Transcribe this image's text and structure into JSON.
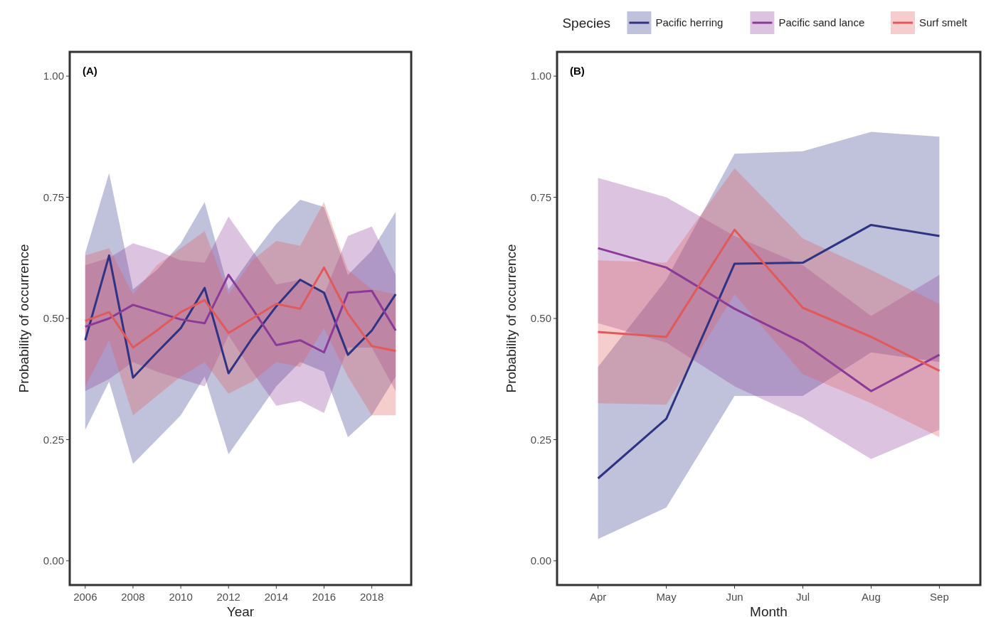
{
  "chart_data": [
    {
      "type": "line",
      "title": "(A)",
      "xlabel": "Year",
      "ylabel": "Probability of occurrence",
      "x": [
        2006,
        2007,
        2008,
        2009,
        2010,
        2011,
        2012,
        2013,
        2014,
        2015,
        2016,
        2017,
        2018,
        2019
      ],
      "xlim": [
        2005.35,
        2019.65
      ],
      "xticks": [
        2006,
        2008,
        2010,
        2012,
        2014,
        2016,
        2018
      ],
      "ylim": [
        -0.05,
        1.05
      ],
      "yticks": [
        {
          "value": 0,
          "label": "0.00"
        },
        {
          "value": 0.25,
          "label": "0.25"
        },
        {
          "value": 0.5,
          "label": "0.50"
        },
        {
          "value": 0.75,
          "label": "0.75"
        },
        {
          "value": 1,
          "label": "1.00"
        }
      ],
      "grid": false,
      "legend": false,
      "series": [
        {
          "color": "#2e3383",
          "values": [
            0.455,
            0.63,
            0.378,
            0.43,
            0.48,
            0.563,
            0.387,
            0.46,
            0.525,
            0.58,
            0.553,
            0.425,
            0.475,
            0.55
          ],
          "lower": [
            0.27,
            0.37,
            0.2,
            0.25,
            0.3,
            0.38,
            0.22,
            0.29,
            0.36,
            0.41,
            0.39,
            0.255,
            0.3,
            0.38
          ],
          "upper": [
            0.635,
            0.8,
            0.56,
            0.6,
            0.655,
            0.74,
            0.56,
            0.63,
            0.695,
            0.745,
            0.73,
            0.59,
            0.64,
            0.72
          ]
        },
        {
          "color": "#8b3a99",
          "values": [
            0.483,
            0.5,
            0.528,
            0.513,
            0.498,
            0.49,
            0.59,
            0.52,
            0.445,
            0.455,
            0.43,
            0.553,
            0.557,
            0.475
          ],
          "lower": [
            0.35,
            0.375,
            0.41,
            0.39,
            0.375,
            0.36,
            0.465,
            0.39,
            0.32,
            0.33,
            0.305,
            0.44,
            0.44,
            0.35
          ],
          "upper": [
            0.61,
            0.625,
            0.655,
            0.64,
            0.62,
            0.615,
            0.71,
            0.64,
            0.57,
            0.58,
            0.55,
            0.67,
            0.69,
            0.59
          ]
        },
        {
          "color": "#e05a5a",
          "values": [
            0.495,
            0.513,
            0.44,
            0.475,
            0.513,
            0.538,
            0.47,
            0.5,
            0.53,
            0.52,
            0.605,
            0.51,
            0.443,
            0.433
          ],
          "lower": [
            0.36,
            0.455,
            0.3,
            0.34,
            0.38,
            0.41,
            0.345,
            0.37,
            0.41,
            0.4,
            0.48,
            0.38,
            0.3,
            0.3
          ],
          "upper": [
            0.63,
            0.645,
            0.55,
            0.61,
            0.645,
            0.68,
            0.55,
            0.62,
            0.66,
            0.65,
            0.74,
            0.6,
            0.56,
            0.55
          ]
        }
      ]
    },
    {
      "type": "line",
      "title": "(B)",
      "xlabel": "Month",
      "ylabel": "Probability of occurrence",
      "categories": [
        "Apr",
        "May",
        "Jun",
        "Jul",
        "Aug",
        "Sep"
      ],
      "ylim": [
        -0.05,
        1.05
      ],
      "yticks": [
        {
          "value": 0,
          "label": "0.00"
        },
        {
          "value": 0.25,
          "label": "0.25"
        },
        {
          "value": 0.5,
          "label": "0.50"
        },
        {
          "value": 0.75,
          "label": "0.75"
        },
        {
          "value": 1,
          "label": "1.00"
        }
      ],
      "grid": false,
      "legend": "top right",
      "legend_title": "Species",
      "series": [
        {
          "name": "Pacific herring",
          "color": "#2e3383",
          "values": [
            0.17,
            0.293,
            0.613,
            0.615,
            0.693,
            0.67
          ],
          "lower": [
            0.045,
            0.11,
            0.34,
            0.34,
            0.43,
            0.41
          ],
          "upper": [
            0.4,
            0.58,
            0.84,
            0.845,
            0.885,
            0.875
          ]
        },
        {
          "name": "Pacific sand lance",
          "color": "#8b3a99",
          "values": [
            0.645,
            0.605,
            0.52,
            0.45,
            0.35,
            0.425
          ],
          "lower": [
            0.49,
            0.45,
            0.36,
            0.295,
            0.21,
            0.27
          ],
          "upper": [
            0.79,
            0.75,
            0.67,
            0.61,
            0.505,
            0.59
          ]
        },
        {
          "name": "Surf smelt",
          "color": "#e05a5a",
          "values": [
            0.472,
            0.462,
            0.683,
            0.522,
            0.462,
            0.392
          ],
          "lower": [
            0.325,
            0.322,
            0.55,
            0.385,
            0.325,
            0.255
          ],
          "upper": [
            0.62,
            0.615,
            0.81,
            0.665,
            0.6,
            0.53
          ]
        }
      ]
    }
  ]
}
